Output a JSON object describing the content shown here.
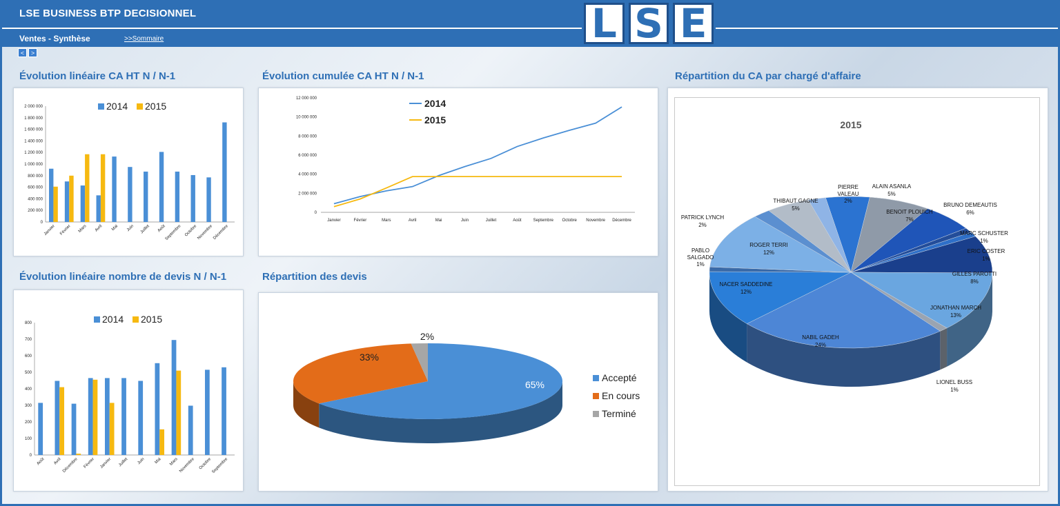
{
  "header": {
    "app_title": "LSE BUSINESS BTP DECISIONNEL",
    "logo_letters": [
      "L",
      "S",
      "E"
    ]
  },
  "subheader": {
    "title": "Ventes - Synthèse",
    "link": ">>Sommaire",
    "prev": "<",
    "next": ">"
  },
  "colors": {
    "blue": "#4a8fd6",
    "orange": "#f6b910",
    "accent": "#2e6fb5",
    "pie_orange": "#e36c19",
    "pie_gray": "#a6a6a6"
  },
  "sections": {
    "ca_lin": "Évolution linéaire CA HT N / N-1",
    "ca_cum": "Évolution cumulée CA HT N / N-1",
    "ca_rep": "Répartition du CA par chargé d'affaire",
    "devis_lin": "Évolution linéaire nombre de devis N / N-1",
    "devis_rep": "Répartition des devis"
  },
  "chart_data": [
    {
      "id": "ca_lin",
      "type": "bar",
      "categories": [
        "Janvier",
        "Février",
        "Mars",
        "Avril",
        "Mai",
        "Juin",
        "Juillet",
        "Août",
        "Septembre",
        "Octobre",
        "Novembre",
        "Décembre"
      ],
      "series": [
        {
          "name": "2014",
          "values": [
            920000,
            700000,
            630000,
            460000,
            1130000,
            950000,
            870000,
            1210000,
            870000,
            810000,
            770000,
            1720000
          ]
        },
        {
          "name": "2015",
          "values": [
            610000,
            800000,
            1170000,
            1170000,
            0,
            0,
            0,
            0,
            0,
            0,
            0,
            0
          ]
        }
      ],
      "yticks": [
        "0",
        "200 000",
        "400 000",
        "600 000",
        "800 000",
        "1 000 000",
        "1 200 000",
        "1 400 000",
        "1 600 000",
        "1 800 000",
        "2 000 000"
      ],
      "ylim": [
        0,
        2000000
      ],
      "legend": "top"
    },
    {
      "id": "ca_cum",
      "type": "line",
      "categories": [
        "Janvier",
        "Février",
        "Mars",
        "Avril",
        "Mai",
        "Juin",
        "Juillet",
        "Août",
        "Septembre",
        "Octobre",
        "Novembre",
        "Décembre"
      ],
      "series": [
        {
          "name": "2014",
          "values": [
            900000,
            1650000,
            2250000,
            2700000,
            3850000,
            4800000,
            5650000,
            6900000,
            7800000,
            8600000,
            9350000,
            11050000
          ]
        },
        {
          "name": "2015",
          "values": [
            600000,
            1400000,
            2550000,
            3750000,
            3750000,
            3750000,
            3750000,
            3750000,
            3750000,
            3750000,
            3750000,
            3750000
          ]
        }
      ],
      "yticks": [
        "0",
        "2 000 000",
        "4 000 000",
        "6 000 000",
        "8 000 000",
        "10 000 000",
        "12 000 000"
      ],
      "ylim": [
        0,
        12000000
      ],
      "legend": "top-left"
    },
    {
      "id": "devis_lin",
      "type": "bar",
      "categories": [
        "Août",
        "Avril",
        "Décembre",
        "Février",
        "Janvier",
        "Juillet",
        "Juin",
        "Mai",
        "Mars",
        "Novembre",
        "Octobre",
        "Septembre"
      ],
      "series": [
        {
          "name": "2014",
          "values": [
            315,
            448,
            310,
            465,
            465,
            465,
            448,
            555,
            695,
            298,
            515,
            530
          ]
        },
        {
          "name": "2015",
          "values": [
            0,
            410,
            8,
            455,
            315,
            0,
            0,
            155,
            510,
            0,
            0,
            0
          ]
        }
      ],
      "yticks": [
        "0",
        "100",
        "200",
        "300",
        "400",
        "500",
        "600",
        "700",
        "800"
      ],
      "ylim": [
        0,
        800
      ],
      "legend": "top"
    },
    {
      "id": "devis_rep",
      "type": "pie",
      "labels": [
        "Accepté",
        "En cours",
        "Terminé"
      ],
      "values": [
        65,
        33,
        2
      ],
      "value_labels": [
        "65%",
        "33%",
        "2%"
      ],
      "legend": "right"
    },
    {
      "id": "ca_rep",
      "type": "pie",
      "title": "2015",
      "labels": [
        "ALAIN ASANLA",
        "BENOIT PLOUICH",
        "BRUNO DEMEAUTIS",
        "MARC SCHUSTER",
        "ERIC COSTER",
        "GILLES PAROTTI",
        "JONATHAN MARCH",
        "LIONEL BUSS",
        "NABIL GADEH",
        "NACER SADDEDINE",
        "PABLO SALGADO",
        "ROGER TERRI",
        "PATRICK LYNCH",
        "THIBAUT GAGNE",
        "PIERRE VALEAU"
      ],
      "values": [
        5,
        7,
        6,
        1,
        1,
        8,
        13,
        1,
        24,
        12,
        1,
        12,
        2,
        5,
        2
      ],
      "value_labels": [
        "5%",
        "7%",
        "6%",
        "1%",
        "1%",
        "8%",
        "13%",
        "1%",
        "24%",
        "12%",
        "1%",
        "12%",
        "2%",
        "5%",
        "2%"
      ],
      "legend": "none"
    }
  ]
}
